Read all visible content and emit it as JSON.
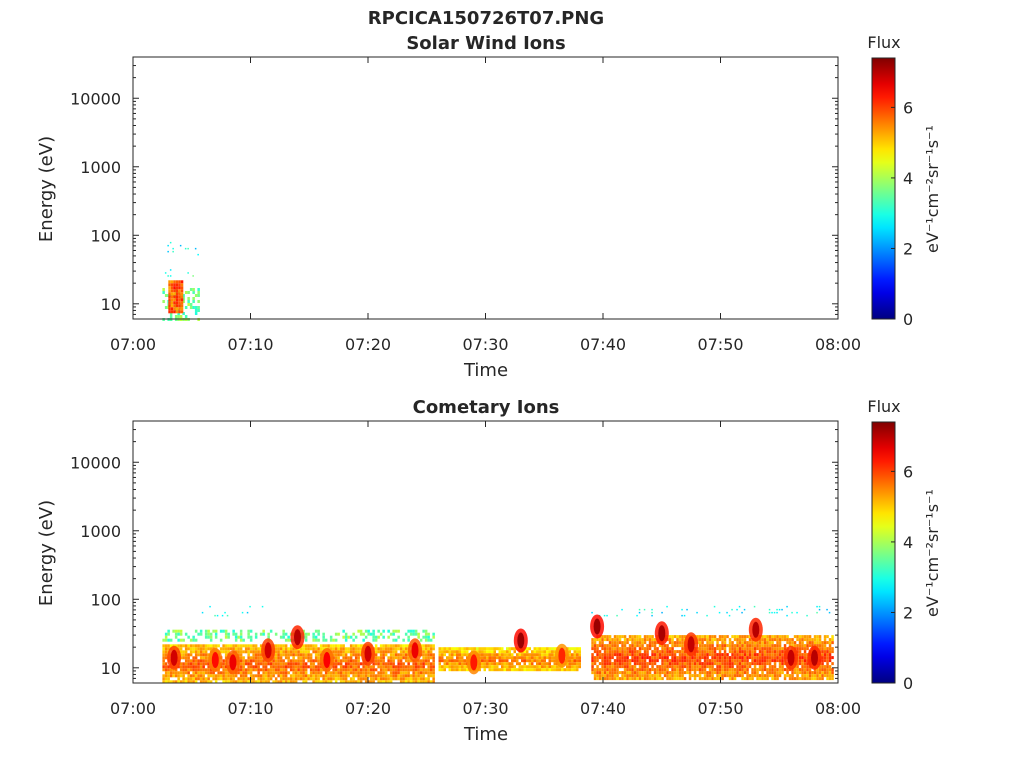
{
  "figure_title": "RPCICA150726T07.PNG",
  "colorbar": {
    "title": "Flux",
    "label": "eV⁻¹cm⁻²sr⁻¹s⁻¹",
    "ticks": [
      "0",
      "2",
      "4",
      "6"
    ],
    "range": [
      0,
      7.4
    ],
    "colormap": "jet"
  },
  "chart_data": [
    {
      "type": "heatmap",
      "title": "Solar Wind Ions",
      "xlabel": "Time",
      "ylabel": "Energy (eV)",
      "x_tick_labels": [
        "07:00",
        "07:10",
        "07:20",
        "07:30",
        "07:40",
        "07:50",
        "08:00"
      ],
      "xlim": [
        "07:00",
        "08:00"
      ],
      "y_tick_labels": [
        "10",
        "100",
        "1000",
        "10000"
      ],
      "y_scale": "log",
      "ylim": [
        6,
        40000
      ],
      "patches": [
        {
          "t0": "07:02:30",
          "t1": "07:05:30",
          "e_lo": 6,
          "e_hi": 17,
          "flux": 3.6,
          "style": "sparse"
        },
        {
          "t0": "07:02:30",
          "t1": "07:05:30",
          "e_lo": 22,
          "e_hi": 32,
          "flux": 3.2,
          "style": "dots"
        },
        {
          "t0": "07:02:30",
          "t1": "07:05:30",
          "e_lo": 50,
          "e_hi": 80,
          "flux": 2.8,
          "style": "dots"
        },
        {
          "t0": "07:03:00",
          "t1": "07:04:10",
          "e_lo": 8,
          "e_hi": 22,
          "flux": 5.8,
          "style": "solid"
        }
      ]
    },
    {
      "type": "heatmap",
      "title": "Cometary Ions",
      "xlabel": "Time",
      "ylabel": "Energy (eV)",
      "x_tick_labels": [
        "07:00",
        "07:10",
        "07:20",
        "07:30",
        "07:40",
        "07:50",
        "08:00"
      ],
      "xlim": [
        "07:00",
        "08:00"
      ],
      "y_tick_labels": [
        "10",
        "100",
        "1000",
        "10000"
      ],
      "y_scale": "log",
      "ylim": [
        6,
        40000
      ],
      "patches": [
        {
          "t0": "07:02:30",
          "t1": "07:25:30",
          "e_lo": 6,
          "e_hi": 22,
          "flux": 5.0,
          "style": "band"
        },
        {
          "t0": "07:02:30",
          "t1": "07:25:30",
          "e_lo": 26,
          "e_hi": 36,
          "flux": 3.6,
          "style": "sparse"
        },
        {
          "t0": "07:05:00",
          "t1": "07:11:00",
          "e_lo": 55,
          "e_hi": 80,
          "flux": 2.8,
          "style": "dots"
        },
        {
          "t0": "07:26:00",
          "t1": "07:38:00",
          "e_lo": 9,
          "e_hi": 20,
          "flux": 4.8,
          "style": "band"
        },
        {
          "t0": "07:39:00",
          "t1": "07:59:30",
          "e_lo": 7,
          "e_hi": 30,
          "flux": 5.2,
          "style": "band"
        },
        {
          "t0": "07:39:00",
          "t1": "07:59:30",
          "e_lo": 55,
          "e_hi": 80,
          "flux": 2.8,
          "style": "dots"
        }
      ],
      "peaks": [
        {
          "t": "07:03:30",
          "e": 14,
          "flux": 6.8
        },
        {
          "t": "07:07:00",
          "e": 13,
          "flux": 6.4
        },
        {
          "t": "07:08:30",
          "e": 12,
          "flux": 6.6
        },
        {
          "t": "07:11:30",
          "e": 18,
          "flux": 6.8
        },
        {
          "t": "07:14:00",
          "e": 28,
          "flux": 7.0
        },
        {
          "t": "07:16:30",
          "e": 13,
          "flux": 6.5
        },
        {
          "t": "07:20:00",
          "e": 16,
          "flux": 6.8
        },
        {
          "t": "07:24:00",
          "e": 18,
          "flux": 6.6
        },
        {
          "t": "07:29:00",
          "e": 12,
          "flux": 6.3
        },
        {
          "t": "07:33:00",
          "e": 25,
          "flux": 7.2
        },
        {
          "t": "07:36:30",
          "e": 15,
          "flux": 6.2
        },
        {
          "t": "07:39:30",
          "e": 40,
          "flux": 7.2
        },
        {
          "t": "07:45:00",
          "e": 32,
          "flux": 7.1
        },
        {
          "t": "07:47:30",
          "e": 22,
          "flux": 6.9
        },
        {
          "t": "07:53:00",
          "e": 36,
          "flux": 7.0
        },
        {
          "t": "07:56:00",
          "e": 14,
          "flux": 6.9
        },
        {
          "t": "07:58:00",
          "e": 14,
          "flux": 7.0
        }
      ]
    }
  ]
}
